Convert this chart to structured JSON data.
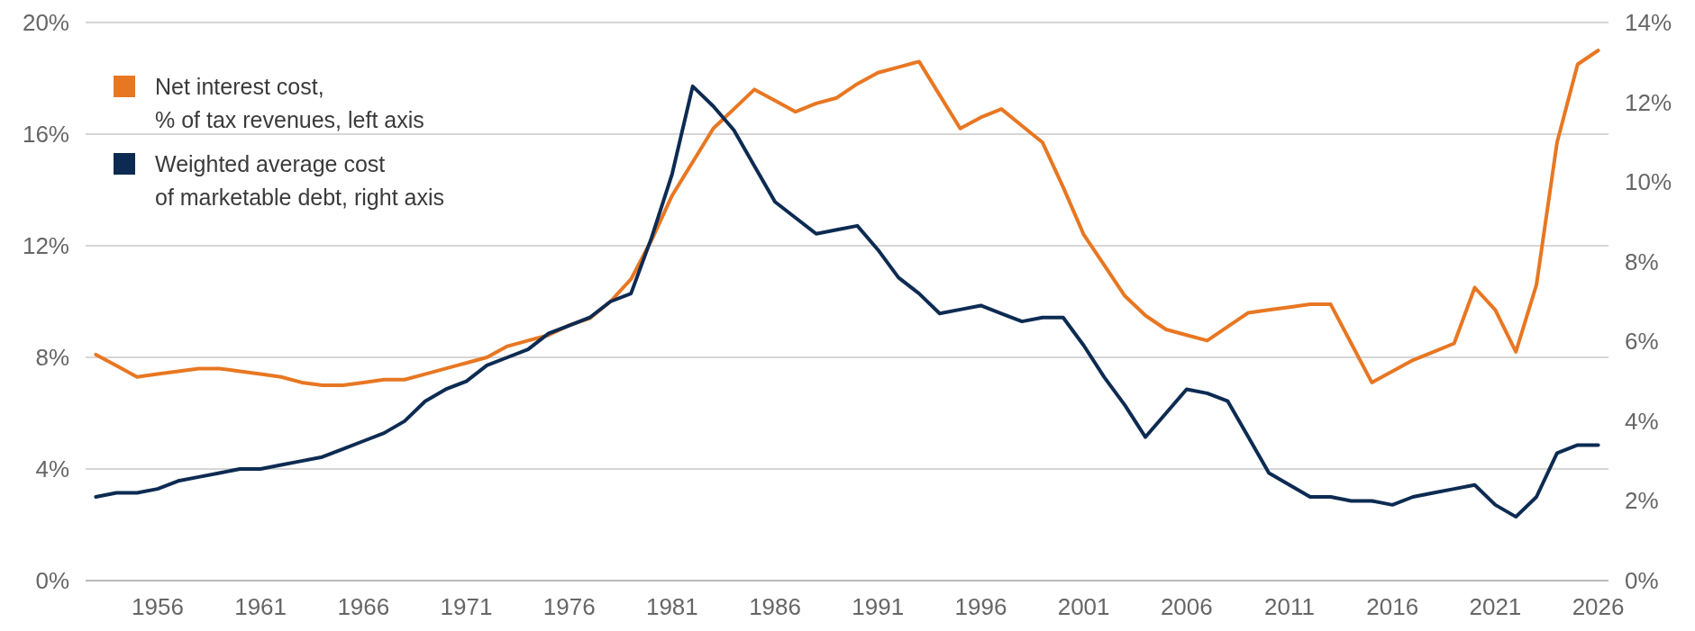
{
  "chart_data": {
    "type": "line",
    "x": [
      1953,
      1954,
      1955,
      1956,
      1957,
      1958,
      1959,
      1960,
      1961,
      1962,
      1963,
      1964,
      1965,
      1966,
      1967,
      1968,
      1969,
      1970,
      1971,
      1972,
      1973,
      1974,
      1975,
      1976,
      1977,
      1978,
      1979,
      1980,
      1981,
      1982,
      1983,
      1984,
      1985,
      1986,
      1987,
      1988,
      1989,
      1990,
      1991,
      1992,
      1993,
      1994,
      1995,
      1996,
      1997,
      1998,
      1999,
      2000,
      2001,
      2002,
      2003,
      2004,
      2005,
      2006,
      2007,
      2008,
      2009,
      2010,
      2011,
      2012,
      2013,
      2014,
      2015,
      2016,
      2017,
      2018,
      2019,
      2020,
      2021,
      2022,
      2023,
      2024,
      2025,
      2026
    ],
    "series": [
      {
        "name": "Net interest cost,\n% of tax revenues, left axis",
        "color": "#e87722",
        "values": [
          8.1,
          7.7,
          7.3,
          7.4,
          7.5,
          7.6,
          7.6,
          7.5,
          7.4,
          7.3,
          7.1,
          7.0,
          7.0,
          7.1,
          7.2,
          7.2,
          7.4,
          7.6,
          7.8,
          8.0,
          8.4,
          8.6,
          8.8,
          9.15,
          9.4,
          10.0,
          10.8,
          12.2,
          13.8,
          15.0,
          16.2,
          16.9,
          17.6,
          17.2,
          16.8,
          17.1,
          17.3,
          17.8,
          18.2,
          18.4,
          18.6,
          17.4,
          16.2,
          16.6,
          16.9,
          16.3,
          15.7,
          14.1,
          12.4,
          11.3,
          10.2,
          9.5,
          9.0,
          8.8,
          8.6,
          9.1,
          9.6,
          9.7,
          9.8,
          9.9,
          9.9,
          8.5,
          7.1,
          7.5,
          7.9,
          8.2,
          8.5,
          10.5,
          9.7,
          8.2,
          10.6,
          15.7,
          18.5,
          19.0
        ]
      },
      {
        "name": "Weighted average cost\nof marketable debt, right axis",
        "color": "#0d2b52",
        "axis": "y2",
        "values": [
          2.1,
          2.2,
          2.2,
          2.3,
          2.5,
          2.6,
          2.7,
          2.8,
          2.8,
          2.9,
          3.0,
          3.1,
          3.3,
          3.5,
          3.7,
          4.0,
          4.5,
          4.8,
          5.0,
          5.4,
          5.6,
          5.8,
          6.2,
          6.4,
          6.6,
          7.0,
          7.2,
          8.6,
          10.2,
          12.4,
          11.9,
          11.3,
          10.4,
          9.5,
          9.1,
          8.7,
          8.8,
          8.9,
          8.3,
          7.6,
          7.2,
          6.7,
          6.8,
          6.9,
          6.7,
          6.5,
          6.6,
          6.6,
          5.9,
          5.1,
          4.4,
          3.6,
          4.2,
          4.8,
          4.7,
          4.5,
          3.6,
          2.7,
          2.4,
          2.1,
          2.1,
          2.0,
          2.0,
          1.9,
          2.1,
          2.2,
          2.3,
          2.4,
          1.9,
          1.6,
          2.1,
          3.2,
          3.4,
          3.4
        ]
      }
    ],
    "xlim": [
      1952.5,
      2026.5
    ],
    "xticks": [
      1956,
      1961,
      1966,
      1971,
      1976,
      1981,
      1986,
      1991,
      1996,
      2001,
      2006,
      2011,
      2016,
      2021,
      2026
    ],
    "ylim": [
      0,
      20
    ],
    "yticks": [
      {
        "value": 0,
        "label": "0%"
      },
      {
        "value": 4,
        "label": "4%"
      },
      {
        "value": 8,
        "label": "8%"
      },
      {
        "value": 12,
        "label": "12%"
      },
      {
        "value": 16,
        "label": "16%"
      },
      {
        "value": 20,
        "label": "20%"
      }
    ],
    "y2lim": [
      0,
      14
    ],
    "y2ticks": [
      {
        "value": 0,
        "label": "0%"
      },
      {
        "value": 2,
        "label": "2%"
      },
      {
        "value": 4,
        "label": "4%"
      },
      {
        "value": 6,
        "label": "6%"
      },
      {
        "value": 8,
        "label": "8%"
      },
      {
        "value": 10,
        "label": "10%"
      },
      {
        "value": 12,
        "label": "12%"
      },
      {
        "value": 14,
        "label": "14%"
      }
    ],
    "grid": "y",
    "legend": "top left",
    "marker": "none",
    "line_style": "solid"
  }
}
